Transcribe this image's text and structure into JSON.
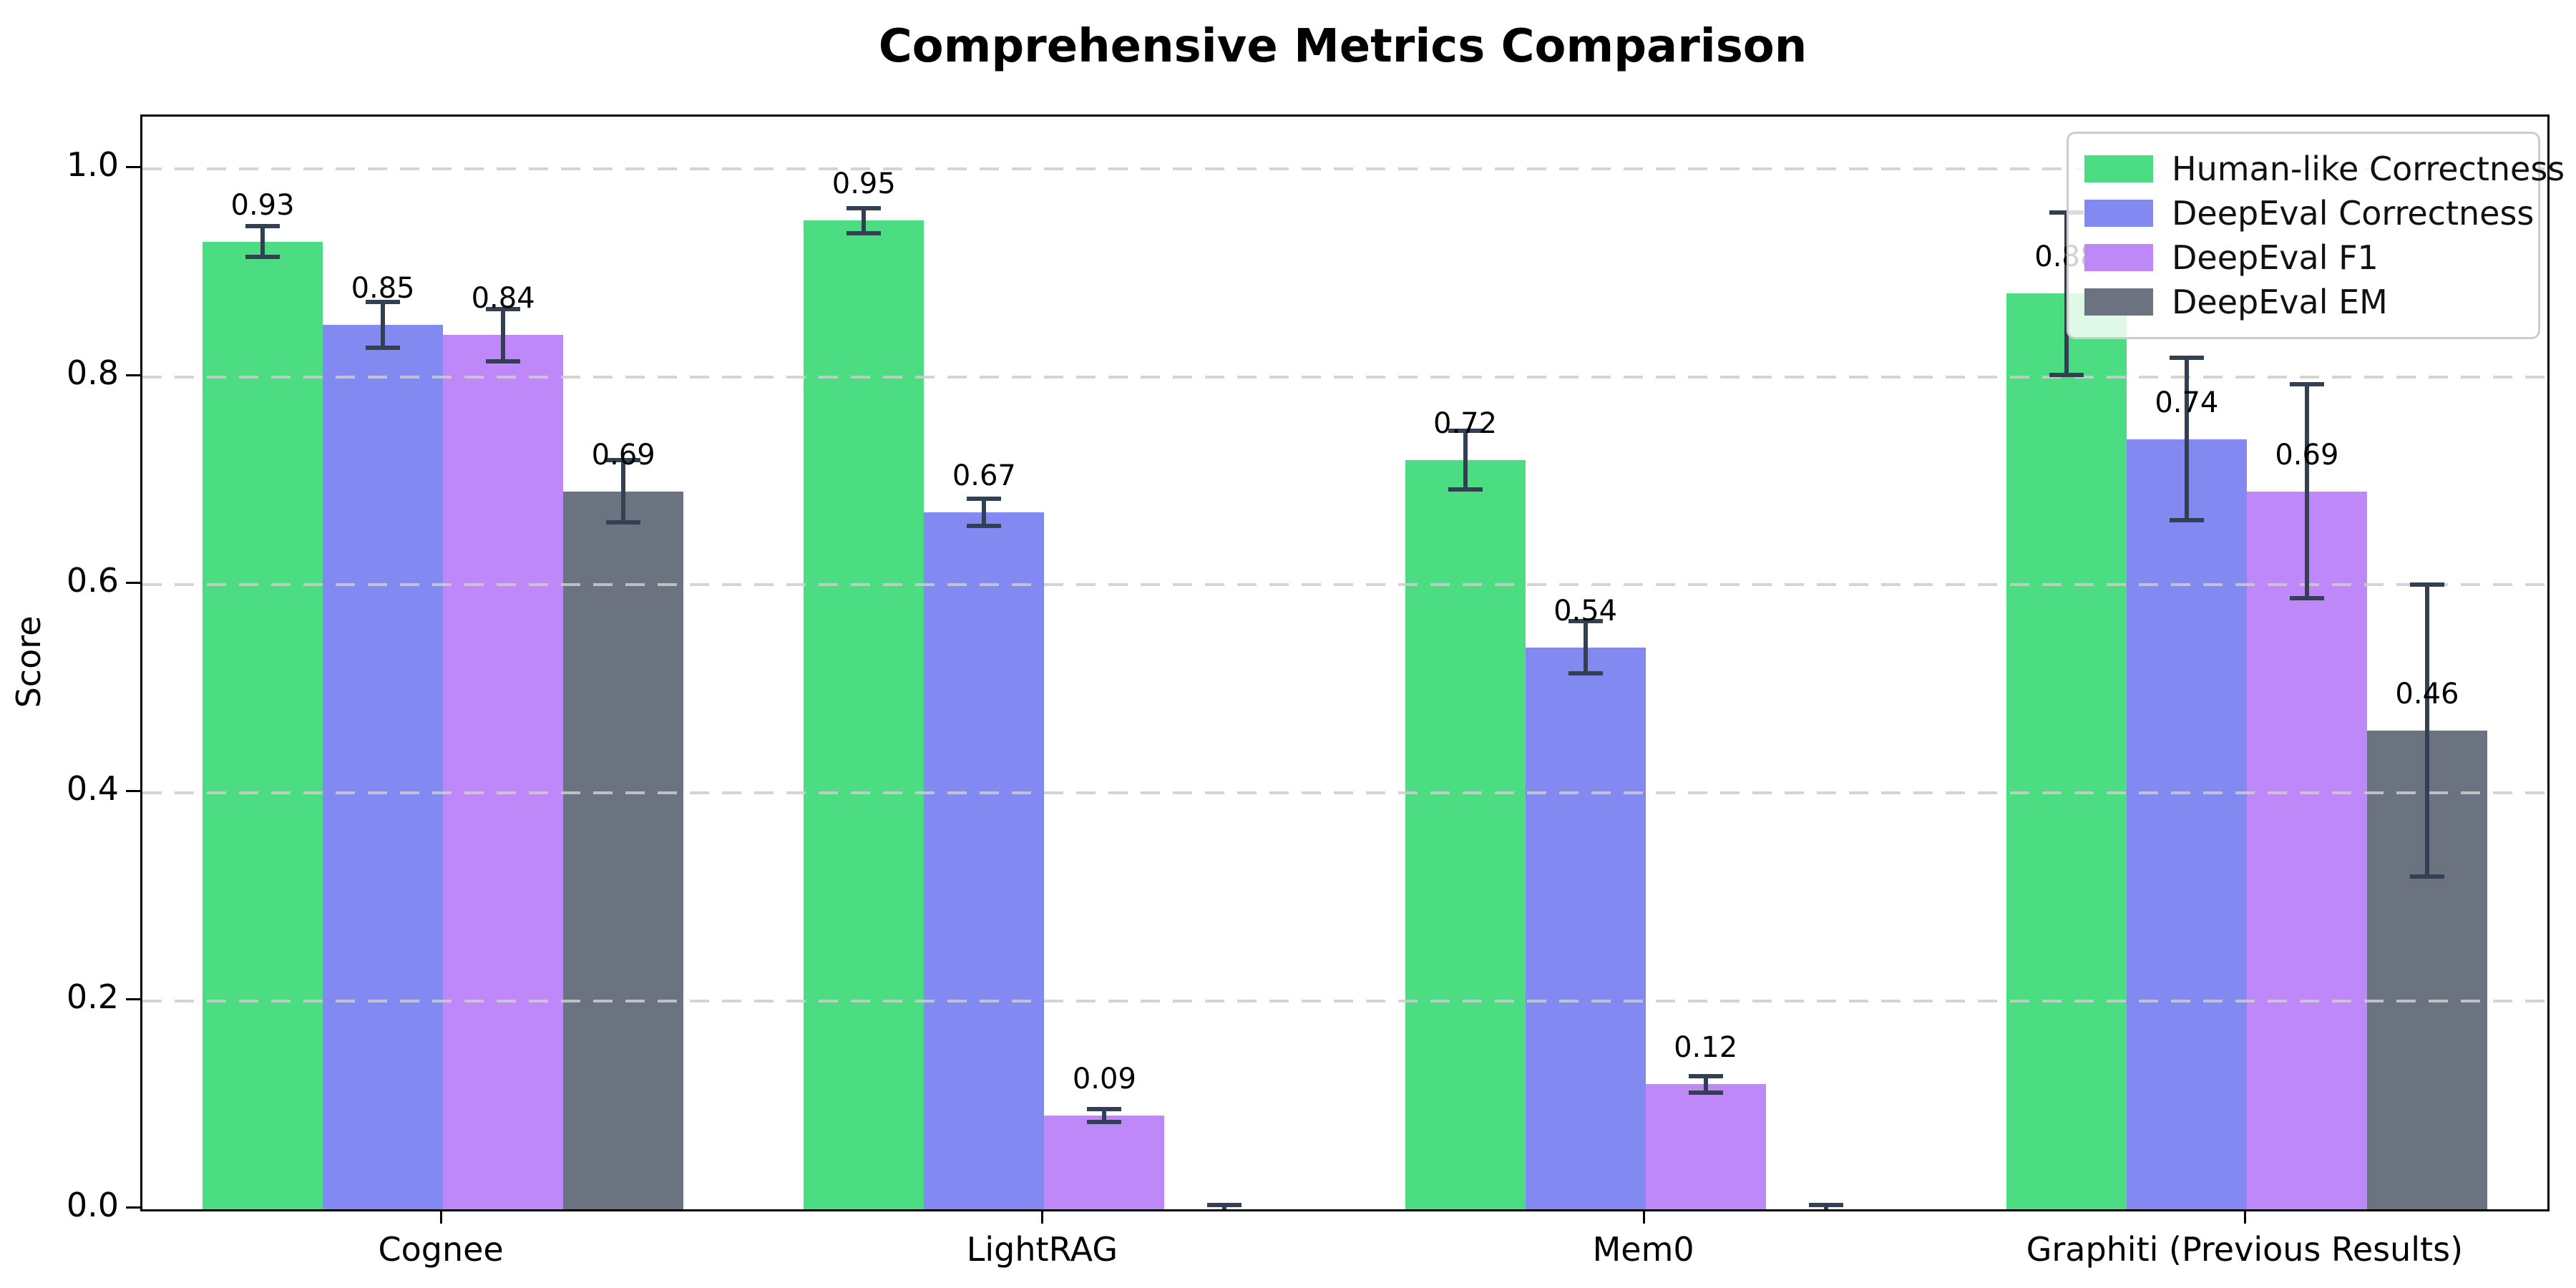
{
  "chart_data": {
    "type": "bar",
    "title": "Comprehensive Metrics Comparison",
    "ylabel": "Score",
    "categories": [
      "Cognee",
      "LightRAG",
      "Mem0",
      "Graphiti (Previous Results)"
    ],
    "series": [
      {
        "name": "Human-like Correctness",
        "color": "#4CDC82",
        "values": [
          0.93,
          0.95,
          0.72,
          0.88
        ],
        "errors": [
          0.015,
          0.012,
          0.028,
          0.078
        ],
        "labels": [
          "0.93",
          "0.95",
          "0.72",
          "0.88"
        ]
      },
      {
        "name": "DeepEval Correctness",
        "color": "#8289F0",
        "values": [
          0.85,
          0.67,
          0.54,
          0.74
        ],
        "errors": [
          0.022,
          0.013,
          0.025,
          0.078
        ],
        "labels": [
          "0.85",
          "0.67",
          "0.54",
          "0.74"
        ]
      },
      {
        "name": "DeepEval F1",
        "color": "#BE88F8",
        "values": [
          0.84,
          0.09,
          0.12,
          0.69
        ],
        "errors": [
          0.025,
          0.006,
          0.008,
          0.103
        ],
        "labels": [
          "0.84",
          "0.09",
          "0.12",
          "0.69"
        ]
      },
      {
        "name": "DeepEval EM",
        "color": "#6B7280",
        "values": [
          0.69,
          0.0,
          0.0,
          0.46
        ],
        "errors": [
          0.03,
          0.004,
          0.004,
          0.14
        ],
        "labels": [
          "0.69",
          "",
          "",
          "0.46"
        ]
      }
    ],
    "yticks": [
      "0.0",
      "0.2",
      "0.4",
      "0.6",
      "0.8",
      "1.0"
    ],
    "ytick_values": [
      0.0,
      0.2,
      0.4,
      0.6,
      0.8,
      1.0
    ],
    "ylim": [
      0,
      1.05
    ],
    "grid": "horizontal-dashed",
    "legend_position": "upper-right",
    "error_bar_color": "#333F52",
    "gridline_color": "#cdcdcd"
  }
}
